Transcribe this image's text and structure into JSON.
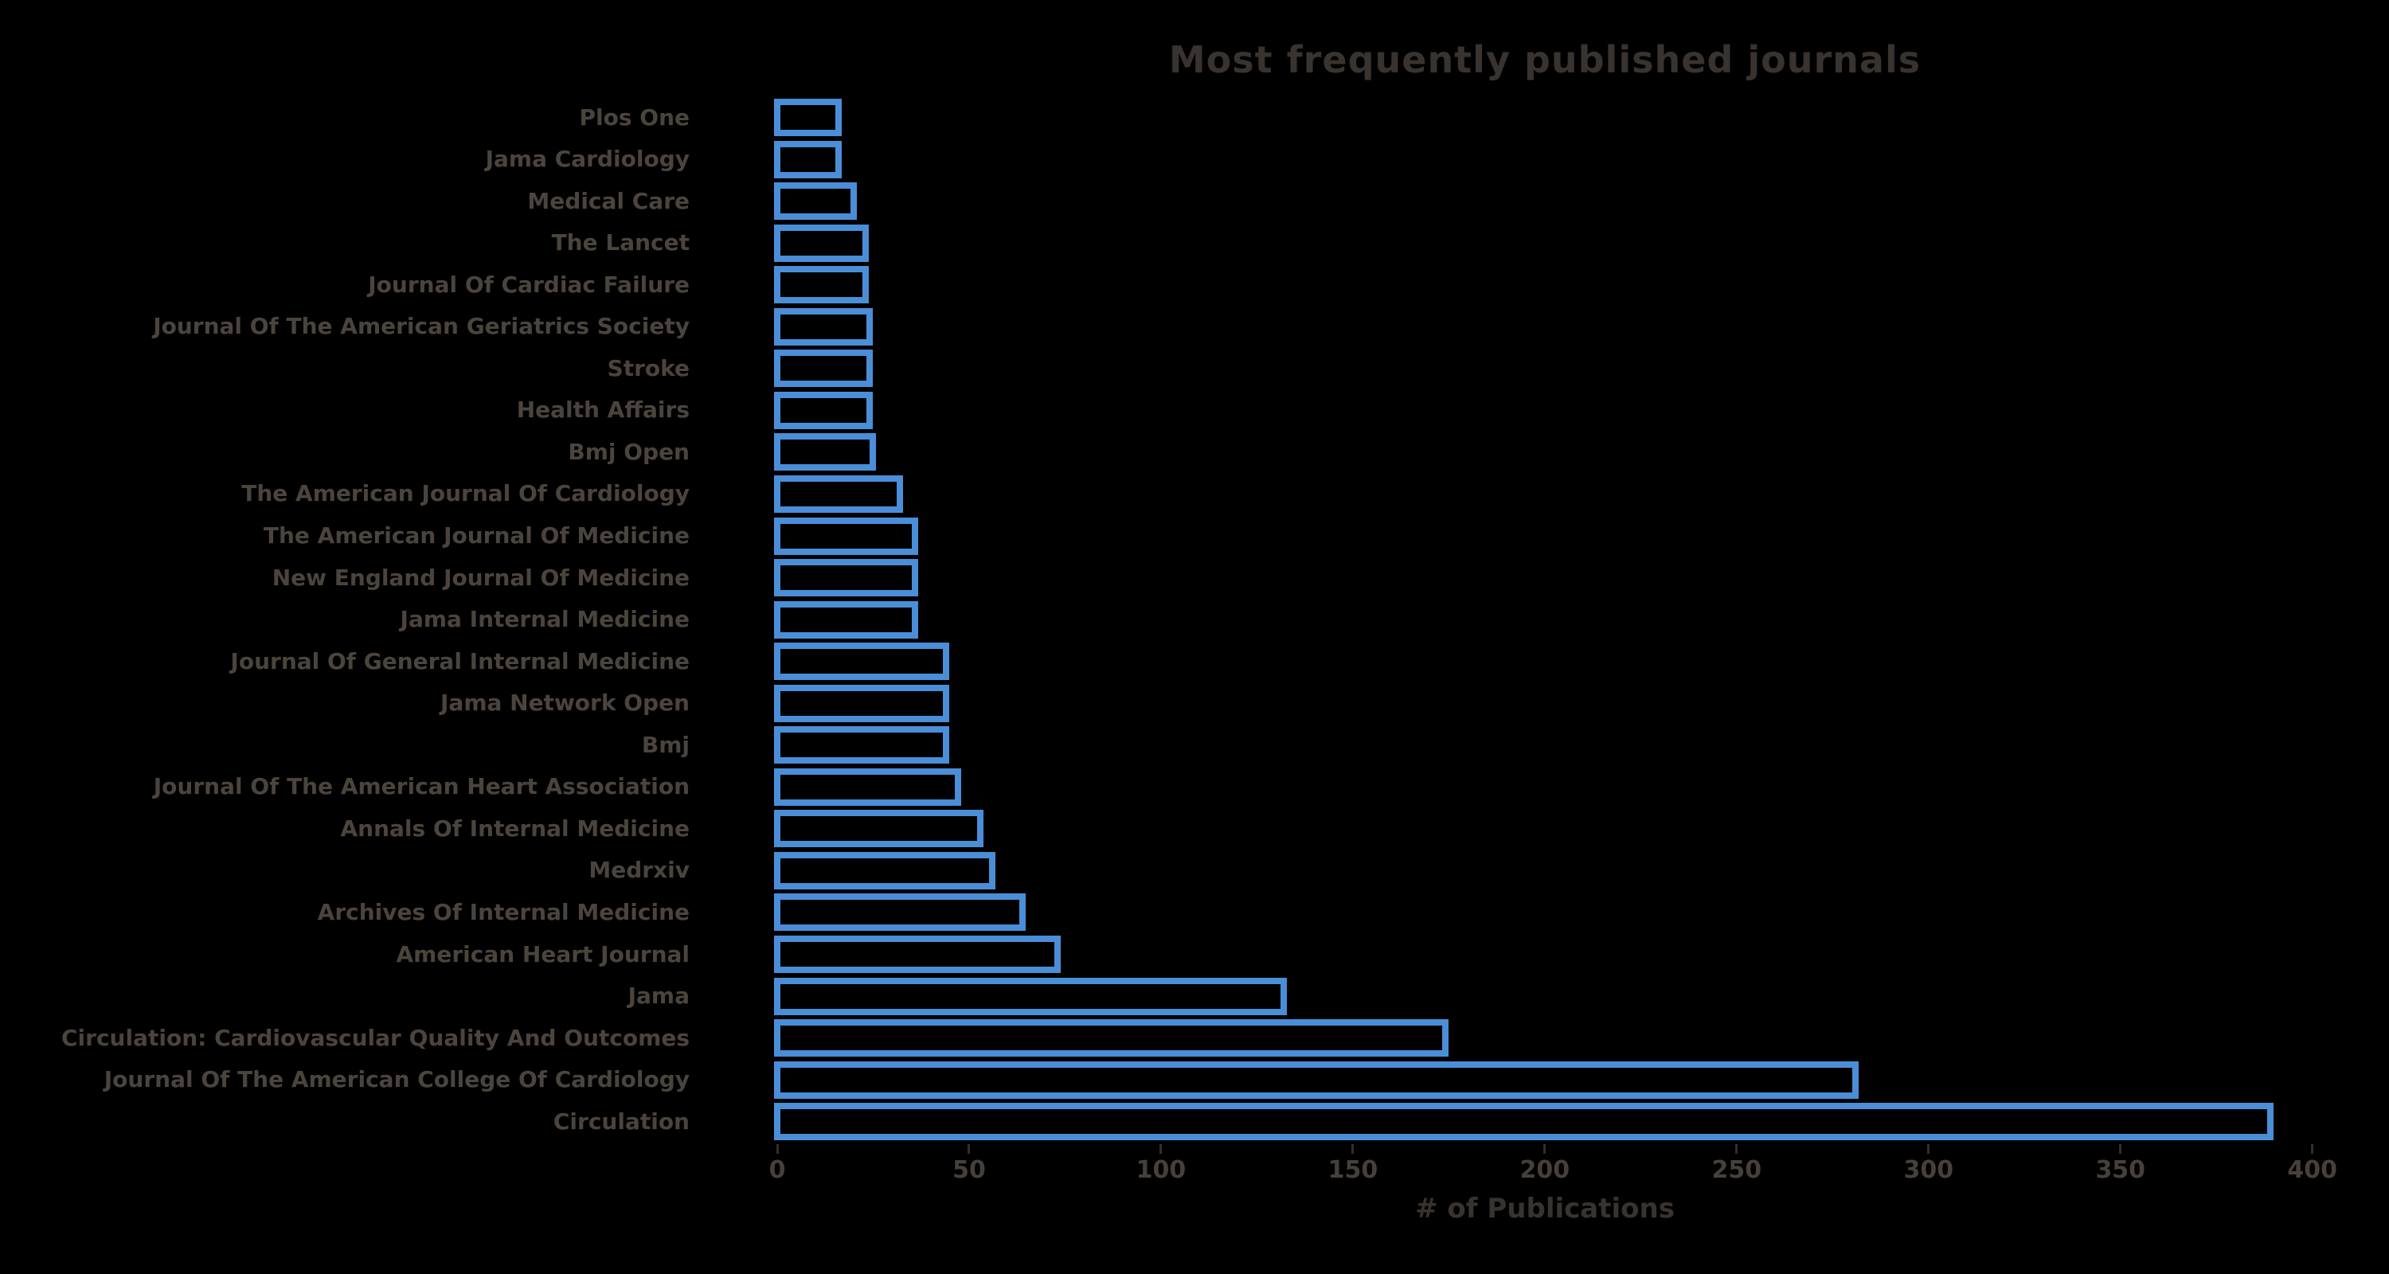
{
  "colors": {
    "background": "#000000",
    "bar_stroke": "#4a8ed8",
    "text": "#4a443c",
    "title_text": "#38332e"
  },
  "chart_data": {
    "type": "bar",
    "orientation": "horizontal",
    "title": "Most frequently published journals",
    "xlabel": "# of Publications",
    "ylabel": "",
    "grid": false,
    "legend": null,
    "xlim": [
      0,
      400
    ],
    "xticks": [
      0,
      50,
      100,
      150,
      200,
      250,
      300,
      350,
      400
    ],
    "bar_fill": "none",
    "categories_top_to_bottom": [
      "Plos One",
      "Jama Cardiology",
      "Medical Care",
      "The Lancet",
      "Journal Of Cardiac Failure",
      "Journal Of The American Geriatrics Society",
      "Stroke",
      "Health Affairs",
      "Bmj Open",
      "The American Journal Of Cardiology",
      "The American Journal Of Medicine",
      "New England Journal Of Medicine",
      "Jama Internal Medicine",
      "Journal Of General Internal Medicine",
      "Jama Network Open",
      "Bmj",
      "Journal Of The American Heart Association",
      "Annals Of Internal Medicine",
      "Medrxiv",
      "Archives Of Internal Medicine",
      "American Heart Journal",
      "Jama",
      "Circulation: Cardiovascular Quality And Outcomes",
      "Journal Of The American College Of Cardiology",
      "Circulation"
    ],
    "values": [
      16,
      16,
      20,
      23,
      23,
      24,
      24,
      24,
      25,
      32,
      36,
      36,
      36,
      44,
      44,
      44,
      47,
      53,
      56,
      64,
      73,
      132,
      174,
      281,
      389
    ]
  }
}
